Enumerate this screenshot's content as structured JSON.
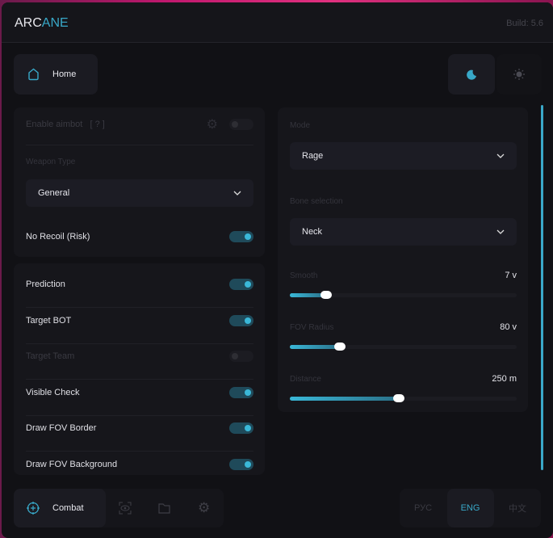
{
  "header": {
    "title_main": "ARC",
    "title_accent": "ANE",
    "build": "Build: 5.6"
  },
  "top_nav": {
    "home_label": "Home",
    "home_icon": "home-icon",
    "theme_dark_icon": "moon-icon",
    "theme_light_icon": "sun-icon"
  },
  "left_panel": {
    "enable_aimbot": {
      "label": "Enable aimbot",
      "hint": "[ ? ]",
      "enabled": false
    },
    "weapon_type": {
      "label": "Weapon Type",
      "value": "General"
    },
    "no_recoil": {
      "label": "No Recoil (Risk)",
      "enabled": true
    }
  },
  "left_panel2": {
    "items": [
      {
        "label": "Prediction",
        "enabled": true
      },
      {
        "label": "Target BOT",
        "enabled": true
      },
      {
        "label": "Target Team",
        "enabled": false
      },
      {
        "label": "Visible Check",
        "enabled": true
      },
      {
        "label": "Draw FOV Border",
        "enabled": true
      },
      {
        "label": "Draw FOV Background",
        "enabled": true
      }
    ]
  },
  "right_panel": {
    "mode": {
      "label": "Mode",
      "value": "Rage"
    },
    "bone": {
      "label": "Bone selection",
      "value": "Neck"
    },
    "sliders": [
      {
        "label": "Smooth",
        "value": "7 v",
        "level": 0.16
      },
      {
        "label": "FOV Radius",
        "value": "80 v",
        "level": 0.22
      },
      {
        "label": "Distance",
        "value": "250 m",
        "level": 0.48
      }
    ]
  },
  "bottom_nav": {
    "combat_label": "Combat",
    "icons": [
      "crosshair-icon",
      "eye-scan-icon",
      "folder-icon",
      "gear-icon"
    ]
  },
  "languages": {
    "items": [
      "РУС",
      "ENG",
      "中文"
    ],
    "active": "ENG"
  },
  "colors": {
    "accent": "#38a8c8",
    "background": "#111115"
  }
}
